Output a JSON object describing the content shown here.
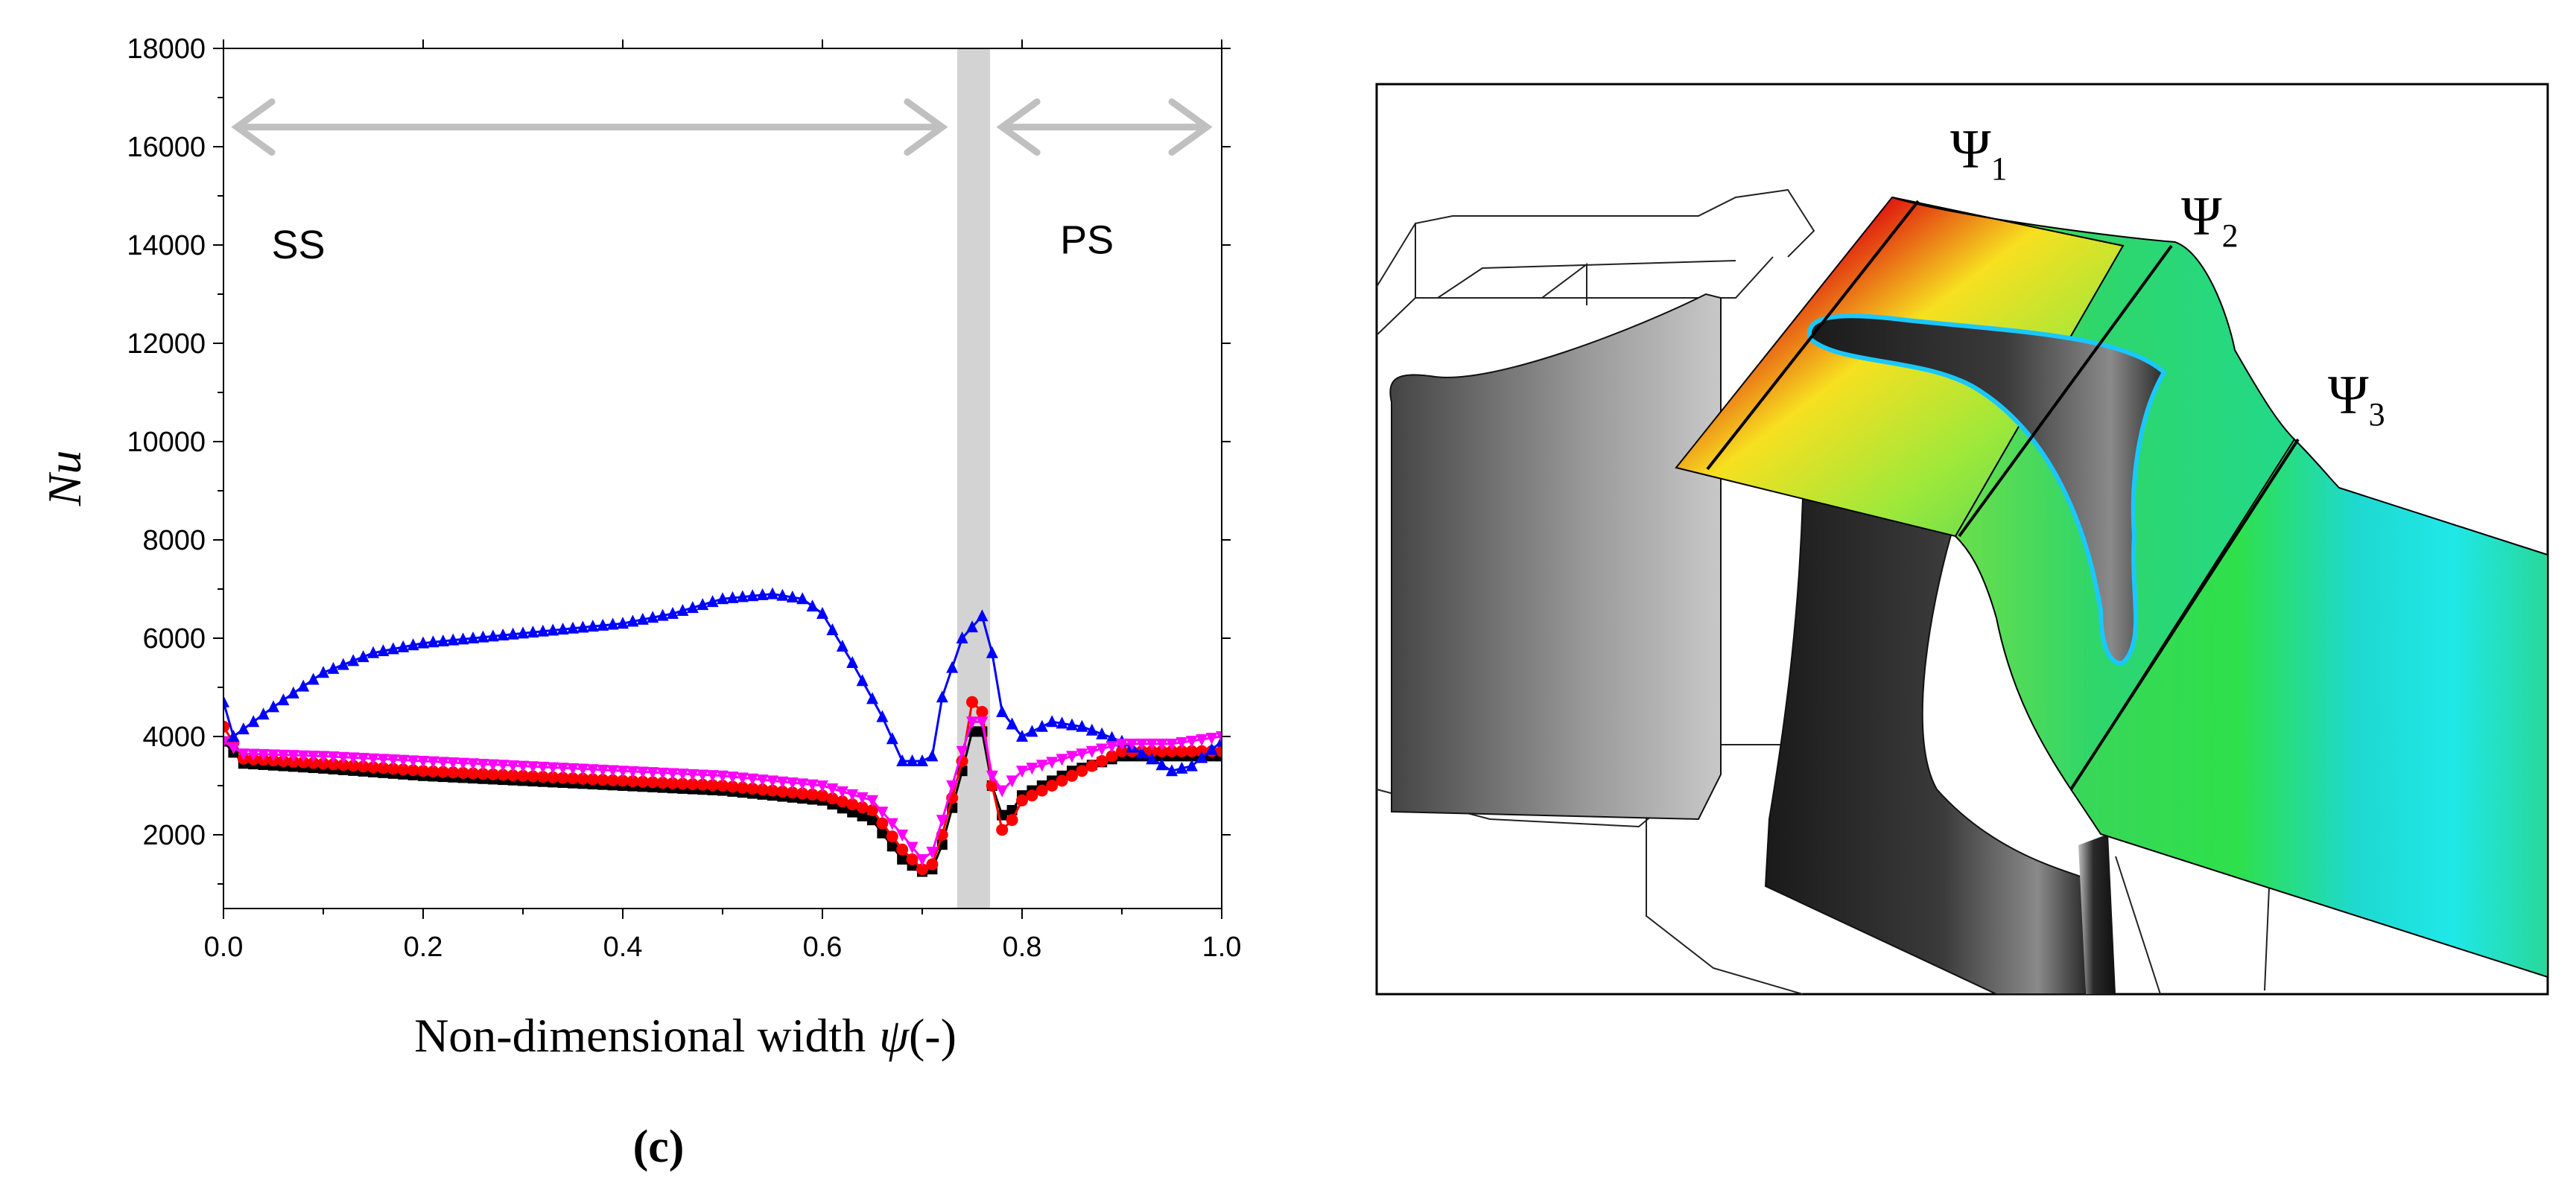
{
  "chart_data": {
    "type": "line",
    "title": "",
    "xlabel": "Non-dimensional width",
    "xsymbol": "ψ",
    "xunit": "(-)",
    "ylabel": "Nu",
    "xlim": [
      0.0,
      1.0
    ],
    "ylim": [
      500,
      18000
    ],
    "xticks": [
      "0.0",
      "0.2",
      "0.4",
      "0.6",
      "0.8",
      "1.0"
    ],
    "yticks": [
      "2000",
      "4000",
      "6000",
      "8000",
      "10000",
      "12000",
      "14000",
      "16000",
      "18000"
    ],
    "shaded_band": [
      0.735,
      0.768
    ],
    "regions": [
      {
        "label": "SS",
        "from": 0.0,
        "to": 0.735,
        "y": 16400
      },
      {
        "label": "PS",
        "from": 0.768,
        "to": 1.0,
        "y": 16400
      }
    ],
    "series": [
      {
        "name": "black-square",
        "color": "#000000",
        "marker": "square",
        "x": [
          0.0,
          0.02,
          0.1,
          0.2,
          0.3,
          0.4,
          0.5,
          0.6,
          0.65,
          0.68,
          0.7,
          0.71,
          0.72,
          0.74,
          0.75,
          0.76,
          0.77,
          0.78,
          0.79,
          0.8,
          0.85,
          0.9,
          0.95,
          1.0
        ],
        "y": [
          3900,
          3450,
          3350,
          3200,
          3100,
          3000,
          2900,
          2700,
          2300,
          1500,
          1250,
          1300,
          1800,
          3300,
          4100,
          4100,
          3000,
          2400,
          2500,
          2800,
          3300,
          3600,
          3600,
          3600
        ]
      },
      {
        "name": "red-circle",
        "color": "#ff0000",
        "marker": "circle",
        "x": [
          0.0,
          0.02,
          0.1,
          0.2,
          0.3,
          0.4,
          0.5,
          0.6,
          0.65,
          0.68,
          0.7,
          0.71,
          0.72,
          0.74,
          0.75,
          0.76,
          0.77,
          0.78,
          0.79,
          0.8,
          0.85,
          0.9,
          0.95,
          1.0
        ],
        "y": [
          4200,
          3550,
          3450,
          3300,
          3200,
          3100,
          3000,
          2800,
          2500,
          1700,
          1300,
          1400,
          2000,
          3500,
          4700,
          4500,
          3000,
          2100,
          2300,
          2700,
          3200,
          3700,
          3700,
          3700
        ]
      },
      {
        "name": "blue-triangle",
        "color": "#0000ff",
        "marker": "triangle-up",
        "x": [
          0.0,
          0.01,
          0.05,
          0.1,
          0.15,
          0.2,
          0.25,
          0.3,
          0.35,
          0.4,
          0.45,
          0.5,
          0.55,
          0.58,
          0.6,
          0.63,
          0.66,
          0.68,
          0.7,
          0.71,
          0.72,
          0.74,
          0.76,
          0.77,
          0.78,
          0.8,
          0.83,
          0.86,
          0.9,
          0.95,
          0.97,
          1.0
        ],
        "y": [
          4700,
          4000,
          4600,
          5300,
          5700,
          5900,
          6000,
          6100,
          6200,
          6300,
          6500,
          6800,
          6900,
          6800,
          6500,
          5500,
          4400,
          3500,
          3500,
          3600,
          4800,
          6000,
          6450,
          5700,
          4500,
          4000,
          4300,
          4200,
          3900,
          3300,
          3400,
          3900
        ]
      },
      {
        "name": "magenta-triangle-down",
        "color": "#ff00ff",
        "marker": "triangle-down",
        "x": [
          0.0,
          0.02,
          0.1,
          0.2,
          0.3,
          0.4,
          0.5,
          0.6,
          0.65,
          0.68,
          0.7,
          0.71,
          0.72,
          0.74,
          0.75,
          0.76,
          0.77,
          0.78,
          0.79,
          0.8,
          0.85,
          0.9,
          0.95,
          1.0
        ],
        "y": [
          3900,
          3650,
          3600,
          3500,
          3400,
          3300,
          3200,
          3000,
          2700,
          2000,
          1500,
          1650,
          2300,
          3700,
          4300,
          4300,
          3200,
          2900,
          3100,
          3300,
          3600,
          3850,
          3850,
          4000
        ]
      }
    ]
  },
  "caption": "(c)",
  "image_labels": {
    "psi1": "Ψ",
    "psi1_sub": "1",
    "psi2": "Ψ",
    "psi2_sub": "2",
    "psi3": "Ψ",
    "psi3_sub": "3"
  },
  "colors": {
    "band": "#d3d3d3",
    "arrow": "#c0c0c0",
    "blade": "#2b2b2b"
  }
}
